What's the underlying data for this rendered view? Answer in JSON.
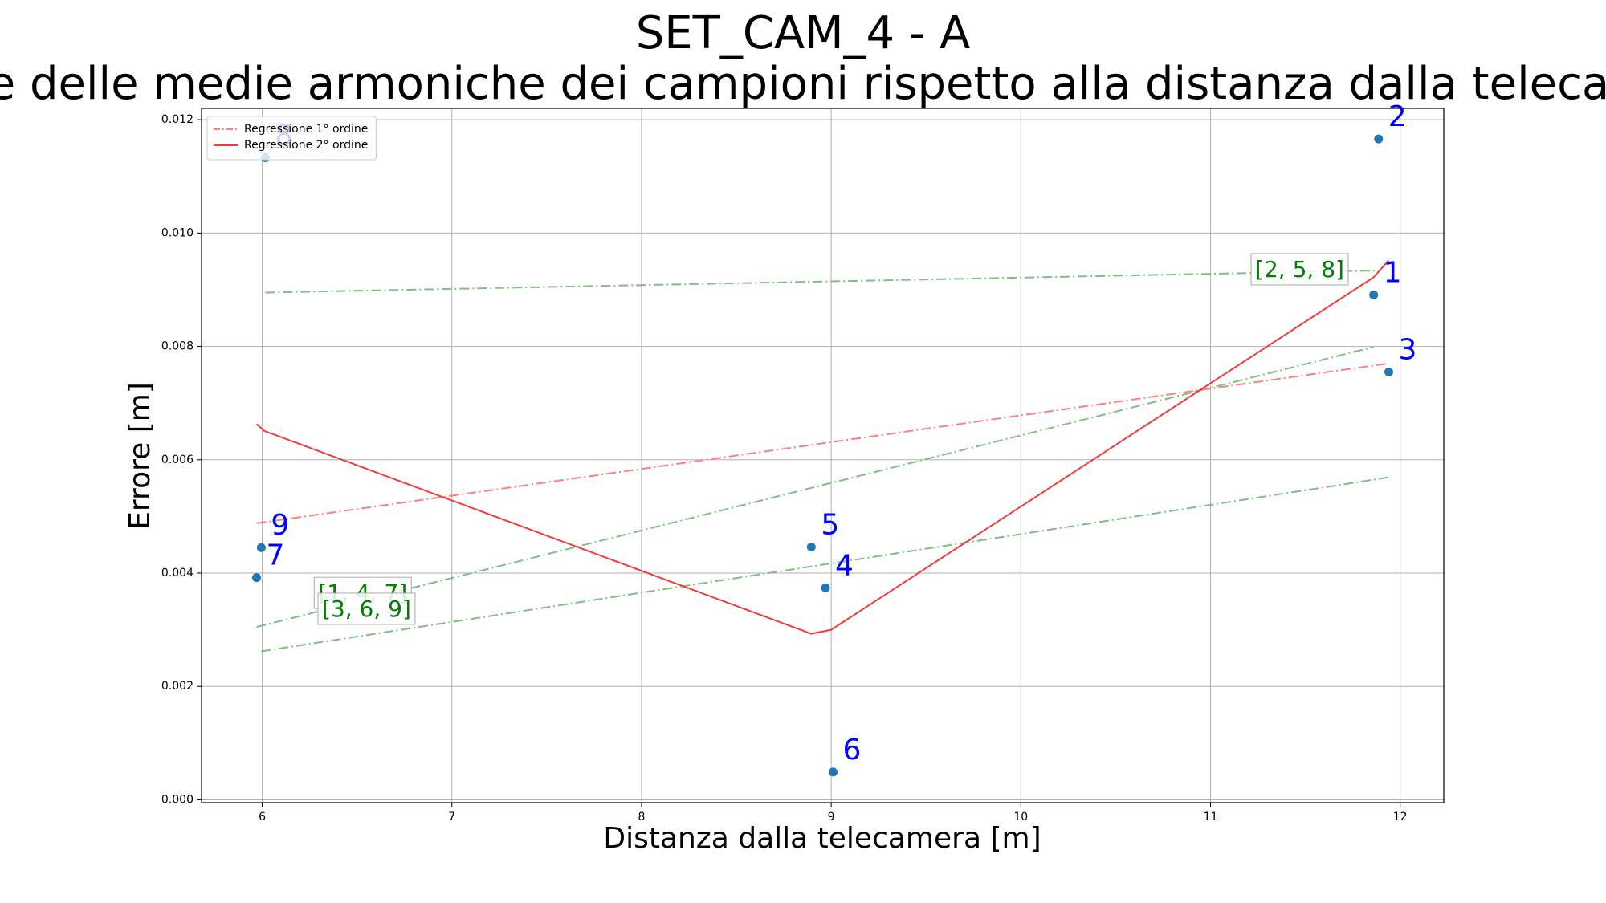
{
  "chart_data": {
    "type": "scatter",
    "title": "SET_CAM_4 - A",
    "subtitle": "Errore delle medie armoniche dei campioni rispetto alla distanza dalla telecamera",
    "xlabel": "Distanza dalla telecamera [m]",
    "ylabel": "Errore [m]",
    "xlim": [
      5.68,
      12.23
    ],
    "ylim": [
      -5e-05,
      0.0122
    ],
    "xticks": [
      6,
      7,
      8,
      9,
      10,
      11,
      12
    ],
    "yticks": [
      {
        "value": 0,
        "label": "0.000"
      },
      {
        "value": 0.002,
        "label": "0.002"
      },
      {
        "value": 0.004,
        "label": "0.004"
      },
      {
        "value": 0.006,
        "label": "0.006"
      },
      {
        "value": 0.008,
        "label": "0.008"
      },
      {
        "value": 0.01,
        "label": "0.010"
      },
      {
        "value": 0.012,
        "label": "0.012"
      }
    ],
    "grid": true,
    "legend": "upper left",
    "points": {
      "color": "#1f77b4",
      "label_color": "#0000ff",
      "labels": [
        "1",
        "2",
        "3",
        "4",
        "5",
        "6",
        "7",
        "8",
        "9"
      ],
      "x": [
        11.86,
        11.886,
        11.94,
        8.97,
        8.895,
        9.01,
        5.97,
        6.016,
        5.995
      ],
      "values": [
        0.00891,
        0.01166,
        0.00755,
        0.00374,
        0.00446,
        0.00049,
        0.00392,
        0.01133,
        0.00445
      ]
    },
    "series": [
      {
        "name": "Regressione 1° ordine",
        "color": "#ff7f7f",
        "dash": true,
        "x": [
          5.97,
          11.94
        ],
        "values": [
          0.00488,
          0.0077
        ]
      },
      {
        "name": "Regressione 2° ordine",
        "color": "#f03c3c",
        "dash": false,
        "x": [
          5.97,
          6.01,
          8.895,
          9.0,
          11.86,
          11.94
        ],
        "values": [
          0.00663,
          0.00651,
          0.00293,
          0.003,
          0.00922,
          0.00952
        ]
      }
    ],
    "group_lines": [
      {
        "label": "[2, 5, 8]",
        "color": "#7fbf7f",
        "x": [
          6.016,
          11.886
        ],
        "values": [
          0.00895,
          0.00934
        ],
        "label_x": 11.47,
        "label_y": 0.00934
      },
      {
        "label": "[1, 4, 7]",
        "color": "#7fbf7f",
        "x": [
          5.97,
          11.86
        ],
        "values": [
          0.00305,
          0.00799
        ],
        "label_x": 6.53,
        "label_y": 0.00363
      },
      {
        "label": "[3, 6, 9]",
        "color": "#7fbf7f",
        "x": [
          5.995,
          11.94
        ],
        "values": [
          0.00262,
          0.00569
        ],
        "label_x": 6.55,
        "label_y": 0.00335
      }
    ],
    "annotation_color": "#008000"
  }
}
